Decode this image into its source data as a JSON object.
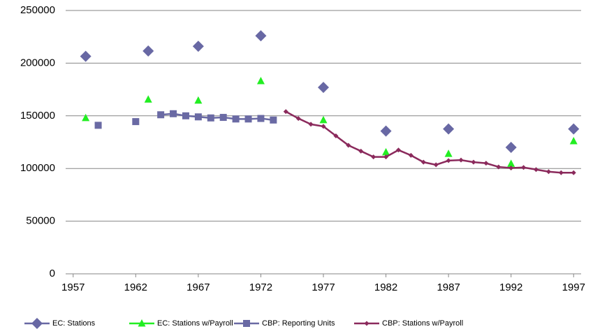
{
  "chart_data": {
    "type": "line",
    "ylim": [
      0,
      250000
    ],
    "yticks": [
      0,
      50000,
      100000,
      150000,
      200000,
      250000
    ],
    "xlim": [
      1956.4,
      1997.6
    ],
    "xticks": [
      1957,
      1962,
      1967,
      1972,
      1977,
      1982,
      1987,
      1992,
      1997
    ],
    "grid": true,
    "legend": "bottom",
    "series": [
      {
        "name": "EC: Stations",
        "color": "#6868a4",
        "marker": "diamond",
        "line": false,
        "x": [
          1958,
          1963,
          1967,
          1972,
          1977,
          1982,
          1987,
          1992,
          1997
        ],
        "values": [
          206500,
          211500,
          216000,
          226000,
          177000,
          135500,
          137500,
          120000,
          137500
        ]
      },
      {
        "name": "EC: Stations w/Payroll",
        "color": "#22ee22",
        "marker": "triangle",
        "line": false,
        "x": [
          1958,
          1963,
          1967,
          1972,
          1977,
          1982,
          1987,
          1992,
          1997
        ],
        "values": [
          148000,
          165500,
          164500,
          183000,
          146000,
          115500,
          114000,
          104500,
          126000
        ]
      },
      {
        "name": "CBP: Reporting Units",
        "color": "#6a6aa4",
        "marker": "square",
        "line": true,
        "x": [
          1959,
          1960,
          1961,
          1962,
          1963,
          1964,
          1965,
          1966,
          1967,
          1968,
          1969,
          1970,
          1971,
          1972,
          1973
        ],
        "values": [
          141000,
          null,
          null,
          144500,
          null,
          151000,
          152000,
          150000,
          149000,
          148000,
          148500,
          147000,
          147000,
          147500,
          146000
        ]
      },
      {
        "name": "CBP: Stations w/Payroll",
        "color": "#8b2a5c",
        "marker": "smalldiamond",
        "line": true,
        "x": [
          1974,
          1975,
          1976,
          1977,
          1978,
          1979,
          1980,
          1981,
          1982,
          1983,
          1984,
          1985,
          1986,
          1987,
          1988,
          1989,
          1990,
          1991,
          1992,
          1993,
          1994,
          1995,
          1996,
          1997
        ],
        "values": [
          154000,
          147500,
          142000,
          140000,
          131000,
          122000,
          116500,
          111000,
          111000,
          117500,
          112500,
          106000,
          103500,
          107500,
          108000,
          106000,
          105000,
          101500,
          100500,
          101000,
          99000,
          97000,
          96000,
          96000
        ]
      }
    ]
  }
}
